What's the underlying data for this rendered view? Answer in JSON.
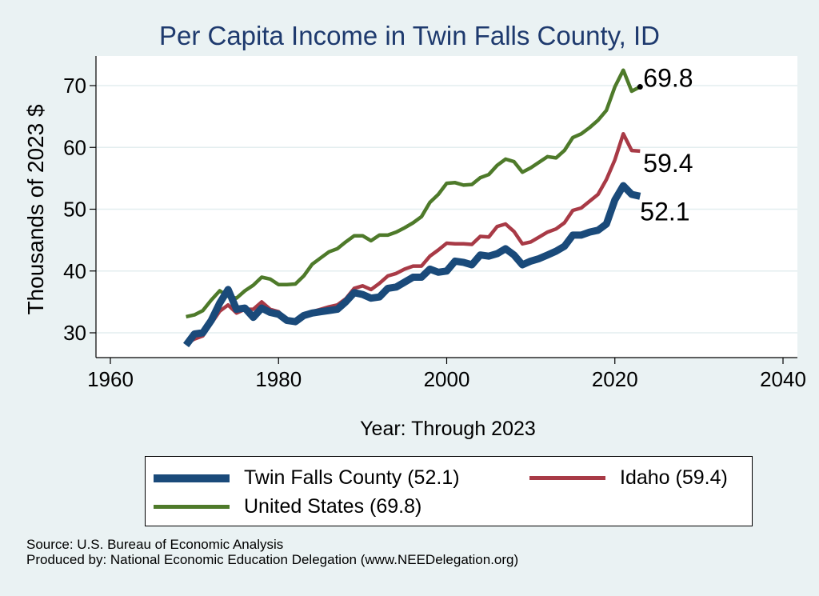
{
  "chart_data": {
    "type": "line",
    "title": "Per Capita Income in Twin Falls County, ID",
    "xlabel": "Year: Through 2023",
    "ylabel": "Thousands of 2023 $",
    "xlim": [
      1960,
      2040
    ],
    "ylim": [
      28,
      75
    ],
    "xticks": [
      1960,
      1980,
      2000,
      2020,
      2040
    ],
    "yticks": [
      30,
      40,
      50,
      60,
      70
    ],
    "grid": true,
    "x": [
      1969,
      1970,
      1971,
      1972,
      1973,
      1974,
      1975,
      1976,
      1977,
      1978,
      1979,
      1980,
      1981,
      1982,
      1983,
      1984,
      1985,
      1986,
      1987,
      1988,
      1989,
      1990,
      1991,
      1992,
      1993,
      1994,
      1995,
      1996,
      1997,
      1998,
      1999,
      2000,
      2001,
      2002,
      2003,
      2004,
      2005,
      2006,
      2007,
      2008,
      2009,
      2010,
      2011,
      2012,
      2013,
      2014,
      2015,
      2016,
      2017,
      2018,
      2019,
      2020,
      2021,
      2022,
      2023
    ],
    "series": [
      {
        "name": "Twin Falls County",
        "legend_label": "Twin Falls County (52.1)",
        "color": "#1a4a7a",
        "width": "thick",
        "end_label": "52.1",
        "values": [
          28.0,
          29.8,
          30.0,
          32.0,
          34.8,
          37.0,
          33.8,
          34.0,
          32.5,
          34.0,
          33.3,
          33.0,
          32.0,
          31.8,
          32.8,
          33.2,
          33.4,
          33.6,
          33.8,
          35.0,
          36.5,
          36.2,
          35.6,
          35.8,
          37.2,
          37.4,
          38.2,
          39.0,
          39.0,
          40.3,
          39.8,
          40.0,
          41.6,
          41.4,
          41.0,
          42.6,
          42.4,
          42.8,
          43.6,
          42.6,
          41.0,
          41.6,
          42.0,
          42.6,
          43.2,
          44.0,
          45.8,
          45.8,
          46.3,
          46.6,
          47.6,
          51.5,
          53.8,
          52.4,
          52.1
        ]
      },
      {
        "name": "Idaho",
        "legend_label": "Idaho (59.4)",
        "color": "#a83a46",
        "width": "medium",
        "end_label": "59.4",
        "values": [
          28.2,
          29.0,
          29.5,
          31.5,
          33.5,
          34.5,
          33.2,
          33.8,
          33.8,
          35.0,
          33.8,
          33.4,
          32.0,
          31.5,
          32.6,
          33.4,
          33.8,
          34.2,
          34.5,
          35.5,
          37.2,
          37.6,
          37.0,
          38.0,
          39.2,
          39.6,
          40.3,
          40.8,
          40.8,
          42.4,
          43.4,
          44.5,
          44.4,
          44.4,
          44.3,
          45.6,
          45.5,
          47.2,
          47.6,
          46.4,
          44.4,
          44.7,
          45.5,
          46.3,
          46.8,
          47.8,
          49.8,
          50.2,
          51.3,
          52.4,
          54.8,
          58.0,
          62.2,
          59.5,
          59.4
        ]
      },
      {
        "name": "United States",
        "legend_label": "United States (69.8)",
        "color": "#4e7a2a",
        "width": "medium",
        "end_label": "69.8",
        "end_marker": true,
        "values": [
          32.6,
          32.9,
          33.6,
          35.3,
          36.8,
          35.9,
          35.6,
          36.8,
          37.7,
          39.0,
          38.7,
          37.8,
          37.8,
          37.9,
          39.2,
          41.1,
          42.1,
          43.1,
          43.6,
          44.7,
          45.7,
          45.7,
          44.9,
          45.8,
          45.8,
          46.3,
          47.0,
          47.8,
          48.8,
          51.1,
          52.4,
          54.2,
          54.3,
          53.9,
          54.0,
          55.1,
          55.6,
          57.1,
          58.1,
          57.7,
          56.0,
          56.7,
          57.6,
          58.5,
          58.3,
          59.5,
          61.6,
          62.2,
          63.2,
          64.4,
          66.0,
          69.8,
          72.5,
          69.1,
          69.8
        ]
      }
    ]
  },
  "source_notes": [
    "Source: U.S. Bureau of Economic Analysis",
    "Produced by: National Economic Education Delegation (www.NEEDelegation.org)"
  ]
}
